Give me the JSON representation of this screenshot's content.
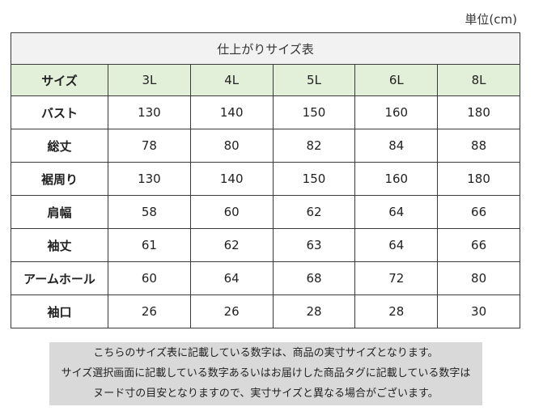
{
  "unit_label": "単位(cm)",
  "table": {
    "title": "仕上がりサイズ表",
    "header_label": "サイズ",
    "sizes": [
      "3L",
      "4L",
      "5L",
      "6L",
      "8L"
    ],
    "rows": [
      {
        "label": "バスト",
        "values": [
          "130",
          "140",
          "150",
          "160",
          "180"
        ]
      },
      {
        "label": "総丈",
        "values": [
          "78",
          "80",
          "82",
          "84",
          "88"
        ]
      },
      {
        "label": "裾周り",
        "values": [
          "130",
          "140",
          "150",
          "160",
          "180"
        ]
      },
      {
        "label": "肩幅",
        "values": [
          "58",
          "60",
          "62",
          "64",
          "66"
        ]
      },
      {
        "label": "袖丈",
        "values": [
          "61",
          "62",
          "63",
          "64",
          "66"
        ]
      },
      {
        "label": "アームホール",
        "values": [
          "60",
          "64",
          "68",
          "72",
          "80"
        ]
      },
      {
        "label": "袖口",
        "values": [
          "26",
          "26",
          "28",
          "28",
          "30"
        ]
      }
    ]
  },
  "note": {
    "lines": [
      "こちらのサイズ表に記載している数字は、商品の実寸サイズとなります。",
      "サイズ選択画面に記載している数字あるいはお届けした商品タグに記載している数字は",
      "ヌード寸の目安となりますので、実寸サイズと異なる場合がございます。"
    ]
  },
  "colors": {
    "header_bg": "#e2efd9",
    "title_bg": "#f2f2f2",
    "note_bg": "#d9d9d9",
    "border": "#3a3a3a"
  }
}
